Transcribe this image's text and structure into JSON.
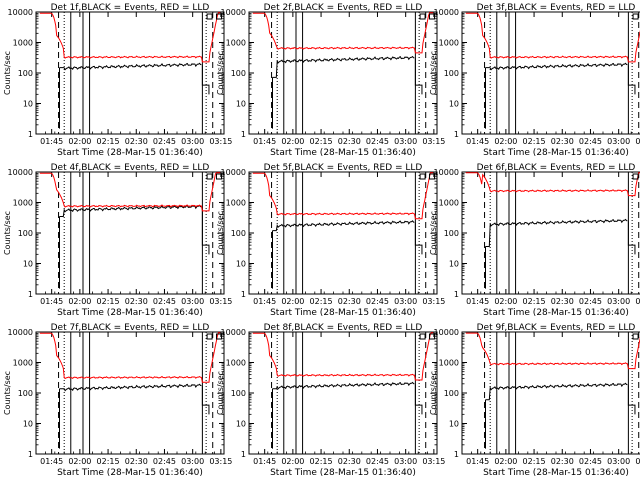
{
  "chart_data": {
    "type": "line",
    "subplots": [
      {
        "title": "Det 1f,BLACK = Events, RED = LLD",
        "black_base": 150,
        "red_base": 330,
        "red_left": 500,
        "black_left": 250
      },
      {
        "title": "Det 2f,BLACK = Events, RED = LLD",
        "black_base": 250,
        "red_base": 650,
        "red_left": 600,
        "black_left": 120
      },
      {
        "title": "Det 3f,BLACK = Events, RED = LLD",
        "black_base": 150,
        "red_base": 330,
        "red_left": 500,
        "black_left": 250
      },
      {
        "title": "Det 4f,BLACK = Events, RED = LLD",
        "black_base": 580,
        "red_base": 760,
        "red_left": 760,
        "black_left": 580
      },
      {
        "title": "Det 5f,BLACK = Events, RED = LLD",
        "black_base": 180,
        "red_base": 420,
        "red_left": 500,
        "black_left": 200
      },
      {
        "title": "Det 6f,BLACK = Events, RED = LLD",
        "black_base": 200,
        "red_base": 2400,
        "red_left": 2400,
        "black_left": 60
      },
      {
        "title": "Det 7f,BLACK = Events, RED = LLD",
        "black_base": 140,
        "red_base": 320,
        "red_left": 500,
        "black_left": 230
      },
      {
        "title": "Det 8f,BLACK = Events, RED = LLD",
        "black_base": 160,
        "red_base": 380,
        "red_left": 500,
        "black_left": 230
      },
      {
        "title": "Det 9f,BLACK = Events, RED = LLD",
        "black_base": 150,
        "red_base": 900,
        "red_left": 900,
        "black_left": 100
      }
    ],
    "xlabel": "Start Time (28-Mar-15 01:36:40)",
    "ylabel": "Counts/sec",
    "xticks": [
      "01:45",
      "02:00",
      "02:15",
      "02:30",
      "02:45",
      "03:00",
      "03:15"
    ],
    "yticks": [
      "1",
      "10",
      "100",
      "1000",
      "10000"
    ],
    "yscale": "log",
    "ylim": [
      1,
      10000
    ],
    "series_colors": {
      "events": "#000000",
      "lld": "#ff0000"
    }
  }
}
